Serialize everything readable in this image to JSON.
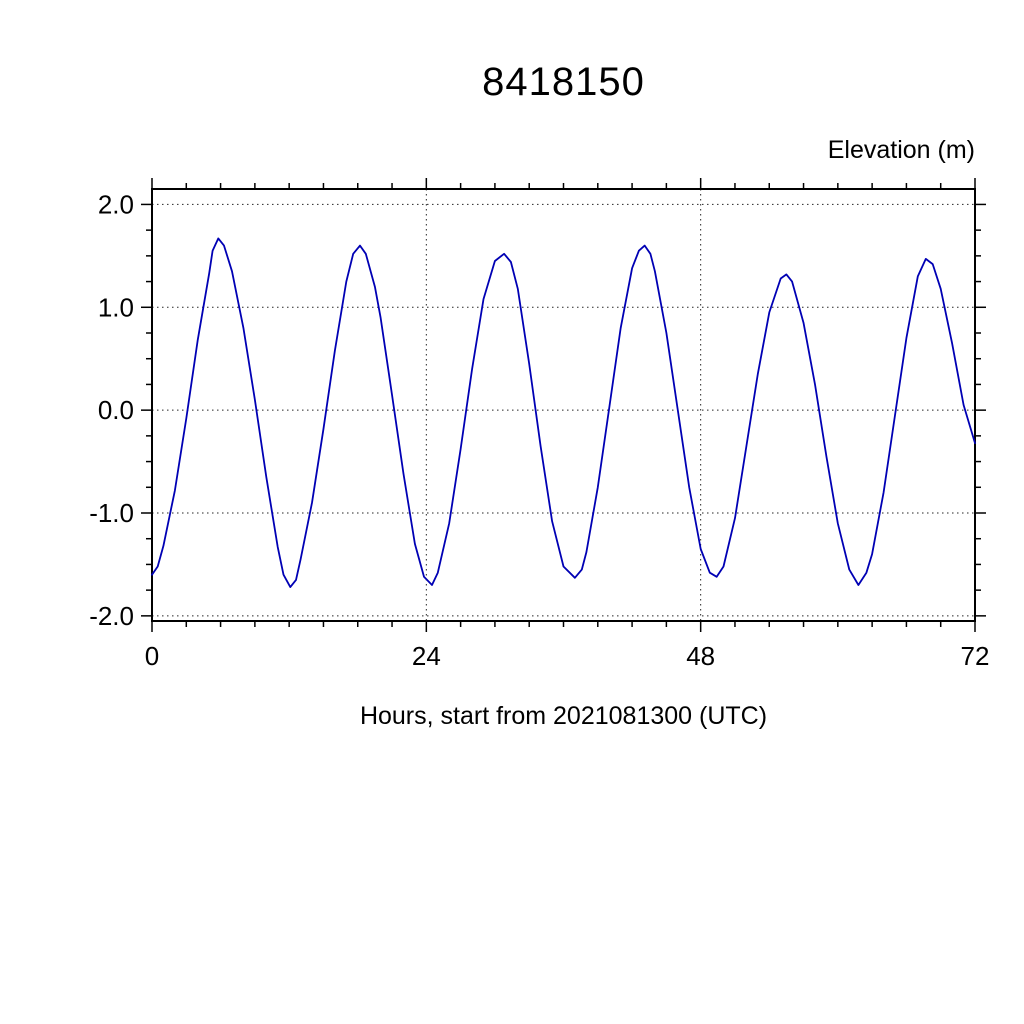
{
  "title": "8418150",
  "y_axis_title": "Elevation (m)",
  "x_axis_label": "Hours, start from 2021081300 (UTC)",
  "chart_data": {
    "type": "line",
    "title": "8418150",
    "xlabel": "Hours, start from 2021081300 (UTC)",
    "ylabel": "Elevation (m)",
    "xlim": [
      0,
      72
    ],
    "ylim": [
      -2.05,
      2.15
    ],
    "x_major_ticks": [
      0,
      24,
      48,
      72
    ],
    "x_tick_labels": [
      "0",
      "24",
      "48",
      "72"
    ],
    "x_minor_step": 3,
    "y_major_ticks": [
      -2,
      -1,
      0,
      1,
      2
    ],
    "y_tick_labels": [
      "-2.0",
      "-1.0",
      "0.0",
      "1.0",
      "2.0"
    ],
    "y_minor_step": 0.25,
    "grid_x": [
      24,
      48
    ],
    "grid_y": [
      -2,
      -1,
      0,
      1,
      2
    ],
    "grid_style": "dotted",
    "legend": "none",
    "line_color": "#0000B4",
    "series": [
      {
        "name": "tidal-elevation",
        "points": [
          [
            0,
            -1.6
          ],
          [
            0.5,
            -1.52
          ],
          [
            1,
            -1.32
          ],
          [
            2,
            -0.78
          ],
          [
            3,
            -0.08
          ],
          [
            4,
            0.68
          ],
          [
            5,
            1.33
          ],
          [
            5.3,
            1.55
          ],
          [
            5.8,
            1.67
          ],
          [
            6.3,
            1.6
          ],
          [
            7,
            1.35
          ],
          [
            8,
            0.8
          ],
          [
            9,
            0.1
          ],
          [
            10,
            -0.65
          ],
          [
            11,
            -1.33
          ],
          [
            11.5,
            -1.6
          ],
          [
            12.1,
            -1.72
          ],
          [
            12.6,
            -1.65
          ],
          [
            13,
            -1.45
          ],
          [
            14,
            -0.9
          ],
          [
            15,
            -0.18
          ],
          [
            16,
            0.58
          ],
          [
            17,
            1.25
          ],
          [
            17.6,
            1.52
          ],
          [
            18.2,
            1.6
          ],
          [
            18.7,
            1.52
          ],
          [
            19.5,
            1.2
          ],
          [
            20,
            0.9
          ],
          [
            21,
            0.15
          ],
          [
            22,
            -0.62
          ],
          [
            23,
            -1.3
          ],
          [
            23.8,
            -1.62
          ],
          [
            24.5,
            -1.7
          ],
          [
            25,
            -1.58
          ],
          [
            26,
            -1.1
          ],
          [
            27,
            -0.38
          ],
          [
            28,
            0.4
          ],
          [
            29,
            1.08
          ],
          [
            30,
            1.45
          ],
          [
            30.8,
            1.52
          ],
          [
            31.4,
            1.44
          ],
          [
            32,
            1.18
          ],
          [
            33,
            0.45
          ],
          [
            34,
            -0.35
          ],
          [
            35,
            -1.08
          ],
          [
            36,
            -1.52
          ],
          [
            37,
            -1.63
          ],
          [
            37.6,
            -1.55
          ],
          [
            38,
            -1.38
          ],
          [
            39,
            -0.75
          ],
          [
            40,
            0.02
          ],
          [
            41,
            0.8
          ],
          [
            42,
            1.38
          ],
          [
            42.6,
            1.55
          ],
          [
            43.1,
            1.6
          ],
          [
            43.6,
            1.52
          ],
          [
            44,
            1.35
          ],
          [
            45,
            0.75
          ],
          [
            46,
            0.0
          ],
          [
            47,
            -0.75
          ],
          [
            48,
            -1.35
          ],
          [
            48.8,
            -1.58
          ],
          [
            49.4,
            -1.62
          ],
          [
            50,
            -1.52
          ],
          [
            51,
            -1.05
          ],
          [
            52,
            -0.35
          ],
          [
            53,
            0.35
          ],
          [
            54,
            0.95
          ],
          [
            55,
            1.28
          ],
          [
            55.5,
            1.32
          ],
          [
            56,
            1.25
          ],
          [
            57,
            0.85
          ],
          [
            58,
            0.25
          ],
          [
            59,
            -0.45
          ],
          [
            60,
            -1.1
          ],
          [
            61,
            -1.55
          ],
          [
            61.8,
            -1.7
          ],
          [
            62.5,
            -1.58
          ],
          [
            63,
            -1.4
          ],
          [
            64,
            -0.8
          ],
          [
            65,
            -0.05
          ],
          [
            66,
            0.7
          ],
          [
            67,
            1.3
          ],
          [
            67.7,
            1.47
          ],
          [
            68.3,
            1.42
          ],
          [
            69,
            1.18
          ],
          [
            70,
            0.65
          ],
          [
            71,
            0.05
          ],
          [
            72,
            -0.32
          ]
        ]
      }
    ]
  }
}
